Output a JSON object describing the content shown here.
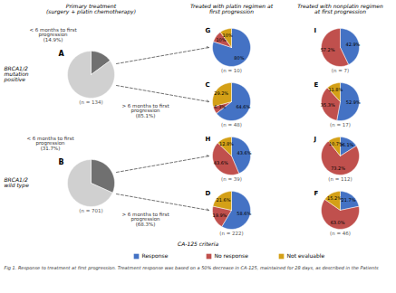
{
  "chart_data": [
    {
      "type": "pie",
      "title": "A",
      "subtitle": "(n = 134)",
      "values": [
        14.9,
        85.1
      ],
      "colors": [
        "#707070",
        "#D0D0D0"
      ],
      "annotations": [
        "Primary treatment\n(surgery + platin chemotherapy)",
        "BRCA1/2\nmutation\npositive",
        "< 6 months to first\nprogression\n(14.9%)",
        "> 6 months to first\nprogression\n(85.1%)"
      ]
    },
    {
      "type": "pie",
      "title": "B",
      "subtitle": "(n = 701)",
      "values": [
        31.7,
        68.3
      ],
      "colors": [
        "#707070",
        "#D0D0D0"
      ],
      "annotations": [
        "BRCA1/2\nwild type",
        "< 6 months to first\nprogression\n(31.7%)",
        "> 6 months to first\nprogression\n(68.3%)",
        "Fig 1. Response to treatment at first progression. Treatment response was based on a 50% decrease in CA-125, maintained for 28 days, as described in the Patients"
      ]
    },
    {
      "type": "pie",
      "title": "G",
      "subtitle": "(n = 10)",
      "categories": [
        "Response",
        "No response",
        "Not evaluable"
      ],
      "values": [
        80.0,
        10.0,
        10.0
      ],
      "value_labels": [
        "80%",
        "10%",
        "10%"
      ],
      "colors": [
        "#4472C4",
        "#C0504D",
        "#D4A017"
      ],
      "data_labels": true,
      "annotations": [
        "Treated with platin regimen at\nfirst progression"
      ]
    },
    {
      "type": "pie",
      "title": "C",
      "subtitle": "(n = 48)",
      "categories": [
        "Response",
        "No response",
        "Not evaluable"
      ],
      "values": [
        64.6,
        6.3,
        29.2
      ],
      "value_labels": [
        "64.6%",
        "6.3%",
        "29.2%"
      ],
      "colors": [
        "#4472C4",
        "#C0504D",
        "#D4A017"
      ],
      "data_labels": true
    },
    {
      "type": "pie",
      "title": "H",
      "subtitle": "(n = 39)",
      "categories": [
        "Response",
        "No response",
        "Not evaluable"
      ],
      "values": [
        43.6,
        43.6,
        12.8
      ],
      "value_labels": [
        "43.6%",
        "43.6%",
        "12.8%"
      ],
      "colors": [
        "#4472C4",
        "#C0504D",
        "#D4A017"
      ],
      "data_labels": true
    },
    {
      "type": "pie",
      "title": "D",
      "subtitle": "(n = 222)",
      "categories": [
        "Response",
        "No response",
        "Not evaluable"
      ],
      "values": [
        58.6,
        19.9,
        21.6
      ],
      "value_labels": [
        "58.6%",
        "19.9%",
        "21.6%"
      ],
      "colors": [
        "#4472C4",
        "#C0504D",
        "#D4A017"
      ],
      "data_labels": true,
      "legend": "bottom",
      "annotations": [
        "CA-125 criteria"
      ]
    },
    {
      "type": "pie",
      "title": "I",
      "subtitle": "(n = 7)",
      "categories": [
        "Response",
        "No response"
      ],
      "values": [
        42.9,
        57.2
      ],
      "value_labels": [
        "42.9%",
        "57.2%"
      ],
      "colors": [
        "#4472C4",
        "#C0504D"
      ],
      "data_labels": true,
      "annotations": [
        "Treated with nonplatin regimen\nat first progression"
      ]
    },
    {
      "type": "pie",
      "title": "E",
      "subtitle": "(n = 17)",
      "categories": [
        "Response",
        "No response",
        "Not evaluable"
      ],
      "values": [
        52.9,
        35.3,
        11.8
      ],
      "value_labels": [
        "52.9%",
        "35.3%",
        "11.8%"
      ],
      "colors": [
        "#4472C4",
        "#C0504D",
        "#D4A017"
      ],
      "data_labels": true
    },
    {
      "type": "pie",
      "title": "J",
      "subtitle": "(n = 112)",
      "categories": [
        "Response",
        "No response",
        "Not evaluable"
      ],
      "values": [
        16.1,
        73.2,
        10.7
      ],
      "value_labels": [
        "16.1%",
        "73.2%",
        "10.7%"
      ],
      "colors": [
        "#4472C4",
        "#C0504D",
        "#D4A017"
      ],
      "data_labels": true
    },
    {
      "type": "pie",
      "title": "F",
      "subtitle": "(n = 46)",
      "categories": [
        "Response",
        "No response",
        "Not evaluable"
      ],
      "values": [
        21.7,
        63.0,
        15.2
      ],
      "value_labels": [
        "21.7%",
        "63.0%",
        "15.2%"
      ],
      "colors": [
        "#4472C4",
        "#C0504D",
        "#D4A017"
      ],
      "data_labels": true
    }
  ]
}
